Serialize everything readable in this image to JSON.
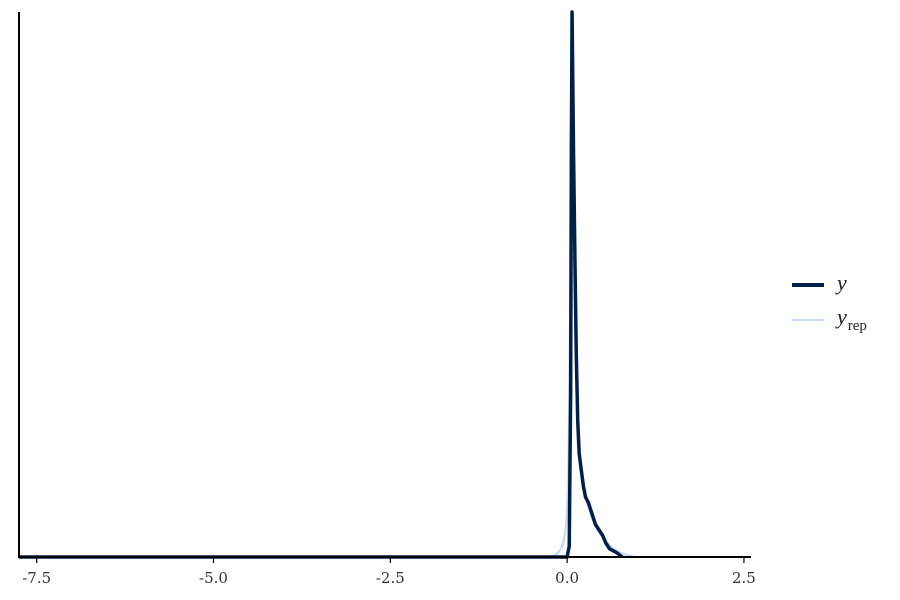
{
  "chart_data": {
    "type": "line",
    "title": "",
    "xlabel": "",
    "ylabel": "",
    "xlim": [
      -7.75,
      2.6
    ],
    "ylim": [
      0,
      1
    ],
    "x_ticks": [
      -7.5,
      -5.0,
      -2.5,
      0.0,
      2.5
    ],
    "x_tick_labels": [
      "-7.5",
      "-5.0",
      "-2.5",
      "0.0",
      "2.5"
    ],
    "y_axis_ticks_shown": false,
    "grid": false,
    "legend_position": "right",
    "legend": [
      {
        "series": "y",
        "label": "y",
        "subscript": ""
      },
      {
        "series": "yrep",
        "label": "y",
        "subscript": "rep"
      }
    ],
    "series": [
      {
        "name": "y",
        "color": "#011f4b",
        "points": [
          [
            -7.75,
            0.0
          ],
          [
            0.0,
            0.0
          ],
          [
            0.03,
            0.02
          ],
          [
            0.05,
            0.3
          ],
          [
            0.06,
            0.75
          ],
          [
            0.07,
            1.0
          ],
          [
            0.09,
            0.75
          ],
          [
            0.11,
            0.55
          ],
          [
            0.13,
            0.37
          ],
          [
            0.15,
            0.25
          ],
          [
            0.17,
            0.19
          ],
          [
            0.2,
            0.16
          ],
          [
            0.23,
            0.13
          ],
          [
            0.26,
            0.11
          ],
          [
            0.3,
            0.1
          ],
          [
            0.35,
            0.08
          ],
          [
            0.4,
            0.06
          ],
          [
            0.45,
            0.05
          ],
          [
            0.5,
            0.04
          ],
          [
            0.55,
            0.025
          ],
          [
            0.6,
            0.015
          ],
          [
            0.7,
            0.008
          ],
          [
            0.78,
            0.0
          ]
        ]
      },
      {
        "name": "yrep",
        "color": "#c6dbef",
        "draws": [
          [
            [
              -7.75,
              0
            ],
            [
              -0.3,
              0
            ],
            [
              -0.18,
              0.004
            ],
            [
              -0.1,
              0.013
            ],
            [
              -0.04,
              0.035
            ],
            [
              0.0,
              0.09
            ],
            [
              0.02,
              0.2
            ],
            [
              0.04,
              0.45
            ],
            [
              0.06,
              0.83
            ],
            [
              0.08,
              0.7
            ],
            [
              0.1,
              0.5
            ],
            [
              0.13,
              0.33
            ],
            [
              0.16,
              0.22
            ],
            [
              0.2,
              0.15
            ],
            [
              0.25,
              0.11
            ],
            [
              0.3,
              0.09
            ],
            [
              0.35,
              0.07
            ],
            [
              0.4,
              0.055
            ],
            [
              0.5,
              0.035
            ],
            [
              0.6,
              0.02
            ],
            [
              0.7,
              0.01
            ],
            [
              0.85,
              0.003
            ],
            [
              1.0,
              0
            ]
          ],
          [
            [
              -7.75,
              0
            ],
            [
              -0.28,
              0
            ],
            [
              -0.16,
              0.005
            ],
            [
              -0.08,
              0.016
            ],
            [
              -0.02,
              0.05
            ],
            [
              0.01,
              0.14
            ],
            [
              0.03,
              0.35
            ],
            [
              0.05,
              0.68
            ],
            [
              0.07,
              0.78
            ],
            [
              0.09,
              0.58
            ],
            [
              0.12,
              0.38
            ],
            [
              0.15,
              0.25
            ],
            [
              0.19,
              0.17
            ],
            [
              0.24,
              0.12
            ],
            [
              0.3,
              0.095
            ],
            [
              0.36,
              0.07
            ],
            [
              0.42,
              0.05
            ],
            [
              0.52,
              0.033
            ],
            [
              0.62,
              0.018
            ],
            [
              0.75,
              0.008
            ],
            [
              0.9,
              0.002
            ],
            [
              1.02,
              0
            ]
          ],
          [
            [
              -7.75,
              0
            ],
            [
              -0.25,
              0
            ],
            [
              -0.14,
              0.006
            ],
            [
              -0.07,
              0.018
            ],
            [
              -0.02,
              0.045
            ],
            [
              0.015,
              0.12
            ],
            [
              0.035,
              0.3
            ],
            [
              0.055,
              0.6
            ],
            [
              0.075,
              0.82
            ],
            [
              0.095,
              0.64
            ],
            [
              0.125,
              0.4
            ],
            [
              0.16,
              0.26
            ],
            [
              0.2,
              0.17
            ],
            [
              0.26,
              0.12
            ],
            [
              0.32,
              0.09
            ],
            [
              0.4,
              0.06
            ],
            [
              0.5,
              0.04
            ],
            [
              0.6,
              0.022
            ],
            [
              0.72,
              0.01
            ],
            [
              0.88,
              0.003
            ],
            [
              0.98,
              0
            ]
          ],
          [
            [
              -7.75,
              0
            ],
            [
              -0.22,
              0
            ],
            [
              -0.12,
              0.007
            ],
            [
              -0.05,
              0.022
            ],
            [
              0.0,
              0.07
            ],
            [
              0.025,
              0.22
            ],
            [
              0.045,
              0.5
            ],
            [
              0.065,
              0.72
            ],
            [
              0.085,
              0.6
            ],
            [
              0.11,
              0.42
            ],
            [
              0.14,
              0.28
            ],
            [
              0.18,
              0.19
            ],
            [
              0.23,
              0.13
            ],
            [
              0.29,
              0.1
            ],
            [
              0.35,
              0.075
            ],
            [
              0.45,
              0.048
            ],
            [
              0.55,
              0.03
            ],
            [
              0.65,
              0.016
            ],
            [
              0.8,
              0.005
            ],
            [
              0.95,
              0
            ]
          ]
        ]
      }
    ]
  }
}
